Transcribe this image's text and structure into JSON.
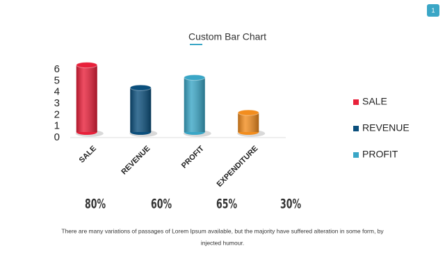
{
  "badge": "1",
  "chart_data": {
    "type": "bar",
    "title": "Custom Bar Chart",
    "categories": [
      "SALE",
      "REVENUE",
      "PROFIT",
      "EXPENDITURE"
    ],
    "values": [
      6.4,
      4.4,
      5.3,
      2.2
    ],
    "colors": [
      "#e8203a",
      "#0b4f7c",
      "#3aa6c6",
      "#f28d1e"
    ],
    "ylim": [
      0,
      6.5
    ],
    "yticks": [
      0,
      1,
      2,
      3,
      4,
      5,
      6
    ],
    "legend": [
      {
        "name": "SALE",
        "color": "#e8203a"
      },
      {
        "name": "REVENUE",
        "color": "#0b4f7c"
      },
      {
        "name": "PROFIT",
        "color": "#3aa6c6"
      }
    ],
    "percentages": {
      "values": [
        80,
        60,
        65,
        30
      ],
      "value_labels": [
        "80%",
        "60%",
        "65%",
        "30%"
      ]
    }
  },
  "caption": [
    "There are many variations of passages of Lorem Ipsum available, but the majority have suffered alteration in some form, by",
    "injected humour."
  ]
}
